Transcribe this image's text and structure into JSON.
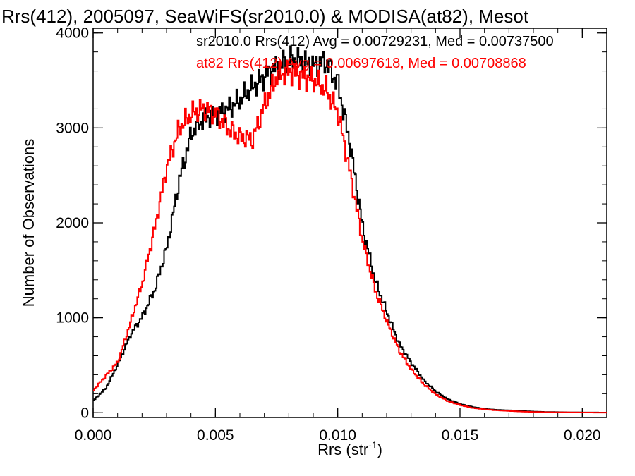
{
  "chart_data": {
    "type": "line",
    "title": "Rrs(412), 2005097, SeaWiFS(sr2010.0) & MODISA(at82), Mesot",
    "xlabel": "Rrs (str",
    "xlabel_sup": "-1",
    "xlabel_tail": ")",
    "ylabel": "Number of Observations",
    "xlim": [
      0.0,
      0.021
    ],
    "ylim": [
      -50,
      4050
    ],
    "x_ticks": [
      {
        "value": 0.0,
        "label": "0.000"
      },
      {
        "value": 0.005,
        "label": "0.005"
      },
      {
        "value": 0.01,
        "label": "0.010"
      },
      {
        "value": 0.015,
        "label": "0.015"
      },
      {
        "value": 0.02,
        "label": "0.020"
      }
    ],
    "y_ticks": [
      {
        "value": 0,
        "label": "0"
      },
      {
        "value": 1000,
        "label": "1000"
      },
      {
        "value": 2000,
        "label": "2000"
      },
      {
        "value": 3000,
        "label": "3000"
      },
      {
        "value": 4000,
        "label": "4000"
      }
    ],
    "annotations": [
      {
        "text": "sr2010.0 Rrs(412) Avg = 0.00729231, Med = 0.00737500",
        "color": "#000000"
      },
      {
        "text": "at82 Rrs(412) Avg = 0.00697618, Med = 0.00708868",
        "color": "#ff0000"
      }
    ],
    "series": [
      {
        "color": "#000000",
        "x": [
          0.0,
          0.0005,
          0.001,
          0.0015,
          0.002,
          0.0025,
          0.003,
          0.0035,
          0.004,
          0.0045,
          0.005,
          0.0055,
          0.006,
          0.0065,
          0.007,
          0.0075,
          0.008,
          0.0085,
          0.009,
          0.0095,
          0.01,
          0.0105,
          0.011,
          0.0115,
          0.012,
          0.0125,
          0.013,
          0.0135,
          0.014,
          0.0145,
          0.015,
          0.0155,
          0.016,
          0.0165,
          0.017,
          0.0175,
          0.018,
          0.0185,
          0.019,
          0.0195,
          0.02,
          0.021
        ],
        "y": [
          130,
          260,
          520,
          820,
          1020,
          1300,
          1750,
          2450,
          2950,
          3100,
          3150,
          3200,
          3300,
          3430,
          3550,
          3650,
          3720,
          3700,
          3650,
          3700,
          3450,
          2800,
          1950,
          1400,
          1050,
          720,
          520,
          340,
          220,
          140,
          90,
          60,
          40,
          30,
          25,
          18,
          12,
          8,
          6,
          4,
          3,
          2
        ]
      },
      {
        "color": "#ff0000",
        "x": [
          0.0,
          0.0005,
          0.001,
          0.0015,
          0.002,
          0.0025,
          0.003,
          0.0035,
          0.004,
          0.0045,
          0.005,
          0.0055,
          0.006,
          0.0065,
          0.007,
          0.0075,
          0.008,
          0.0085,
          0.009,
          0.0095,
          0.01,
          0.0105,
          0.011,
          0.0115,
          0.012,
          0.0125,
          0.013,
          0.0135,
          0.014,
          0.0145,
          0.015,
          0.0155,
          0.016,
          0.0165,
          0.017,
          0.0175,
          0.018,
          0.0185,
          0.019,
          0.0195,
          0.02,
          0.021
        ],
        "y": [
          240,
          390,
          540,
          950,
          1380,
          1950,
          2600,
          3000,
          3150,
          3200,
          3150,
          3000,
          2900,
          2880,
          3250,
          3550,
          3600,
          3550,
          3500,
          3400,
          3150,
          2500,
          1800,
          1300,
          950,
          650,
          450,
          300,
          190,
          120,
          80,
          50,
          35,
          25,
          18,
          12,
          8,
          5,
          4,
          3,
          2,
          1
        ]
      }
    ],
    "grid": false
  }
}
